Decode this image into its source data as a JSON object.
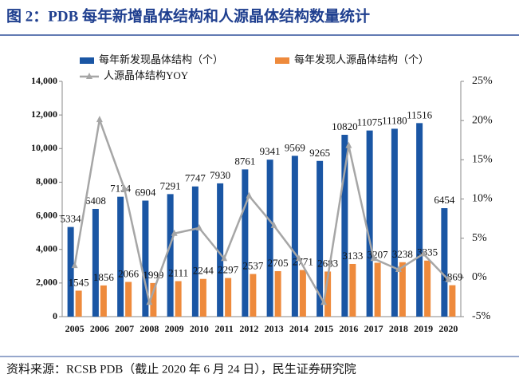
{
  "chart_data": {
    "type": "bar-line",
    "title": "图 2：PDB 每年新增晶体结构和人源晶体结构数量统计",
    "source": "资料来源：RCSB PDB（截止 2020 年 6 月 24 日），民生证券研究院",
    "categories": [
      "2005",
      "2006",
      "2007",
      "2008",
      "2009",
      "2010",
      "2011",
      "2012",
      "2013",
      "2014",
      "2015",
      "2016",
      "2017",
      "2018",
      "2019",
      "2020"
    ],
    "series": [
      {
        "name": "每年新发现晶体结构（个）",
        "color": "#1a56a4",
        "values": [
          5334,
          6408,
          7134,
          6904,
          7291,
          7747,
          7930,
          8761,
          9341,
          9569,
          9265,
          10820,
          11075,
          11180,
          11516,
          6454
        ]
      },
      {
        "name": "每年发现人源晶体结构（个）",
        "color": "#ee8a3c",
        "values": [
          1545,
          1856,
          2066,
          1999,
          2111,
          2244,
          2297,
          2537,
          2705,
          2771,
          2683,
          3133,
          3207,
          3238,
          3335,
          1869
        ]
      },
      {
        "name": "人源晶体结构YOY",
        "color": "#a6a6a6",
        "axis": "y2",
        "values": [
          1.5,
          20.1,
          11.3,
          -3.2,
          5.6,
          6.3,
          2.4,
          10.4,
          6.6,
          2.4,
          -3.2,
          16.8,
          2.4,
          1.0,
          3.0,
          -0.3
        ]
      }
    ],
    "ylim": [
      0,
      14000
    ],
    "yticks": [
      {
        "value": 0,
        "label": "0"
      },
      {
        "value": 2000,
        "label": "2,000"
      },
      {
        "value": 4000,
        "label": "4,000"
      },
      {
        "value": 6000,
        "label": "6,000"
      },
      {
        "value": 8000,
        "label": "8,000"
      },
      {
        "value": 10000,
        "label": "10,000"
      },
      {
        "value": 12000,
        "label": "12,000"
      },
      {
        "value": 14000,
        "label": "14,000"
      }
    ],
    "y2lim": [
      -5,
      25
    ],
    "y2ticks": [
      {
        "value": -5,
        "label": "-5%"
      },
      {
        "value": 0,
        "label": "0%"
      },
      {
        "value": 5,
        "label": "5%"
      },
      {
        "value": 10,
        "label": "10%"
      },
      {
        "value": 15,
        "label": "15%"
      },
      {
        "value": 20,
        "label": "20%"
      },
      {
        "value": 25,
        "label": "25%"
      }
    ]
  }
}
